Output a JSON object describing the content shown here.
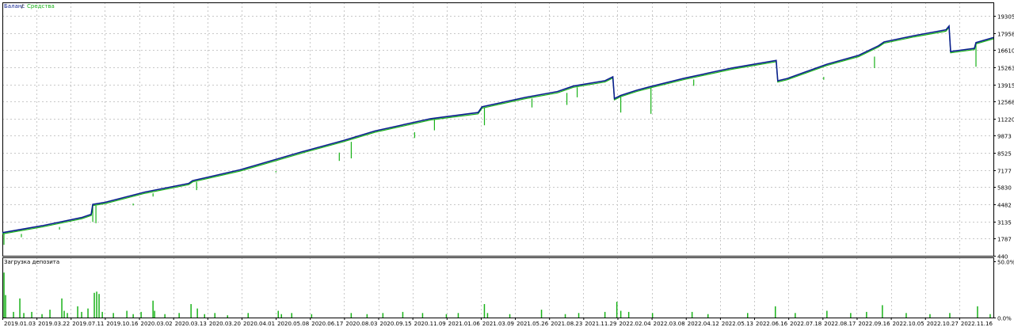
{
  "colors": {
    "balance": "#0b1f8f",
    "equity": "#19b219",
    "load": "#19b219",
    "grid": "#c8c8c8",
    "frame": "#000000",
    "text": "#000000"
  },
  "chart_data": [
    {
      "type": "line",
      "legend": [
        {
          "label": "Баланс",
          "color": "#0b1f8f"
        },
        {
          "label": "Средства",
          "color": "#19b219"
        }
      ],
      "legend_separator": " / ",
      "y_ticks": [
        "19305",
        "17958",
        "16610",
        "15263",
        "13915",
        "12568",
        "11220",
        "9873",
        "8525",
        "7177",
        "5830",
        "4482",
        "3135",
        "1787",
        "440"
      ],
      "ylim": [
        440,
        19305
      ],
      "x_ticks": [
        "2019.01.03",
        "2019.03.22",
        "2019.07.11",
        "2019.10.16",
        "2020.03.02",
        "2020.03.13",
        "2020.03.20",
        "2020.04.01",
        "2020.05.08",
        "2020.06.17",
        "2020.08.03",
        "2020.09.15",
        "2020.11.09",
        "2021.01.06",
        "2021.03.09",
        "2021.05.26",
        "2021.08.23",
        "2021.11.29",
        "2022.02.04",
        "2022.03.08",
        "2022.04.12",
        "2022.05.13",
        "2022.06.16",
        "2022.07.18",
        "2022.08.17",
        "2022.09.16",
        "2022.10.05",
        "2022.10.27",
        "2022.11.16"
      ],
      "series": [
        {
          "name": "Баланс",
          "x": [
            0,
            50,
            100,
            112,
            114,
            130,
            180,
            235,
            240,
            300,
            380,
            430,
            470,
            540,
            600,
            605,
            660,
            700,
            720,
            760,
            770,
            772,
            780,
            800,
            818,
            860,
            920,
            976,
            978,
            990,
            1040,
            1080,
            1105,
            1112,
            1150,
            1190,
            1194,
            1196,
            1226,
            1228,
            1250
          ],
          "y": [
            2260,
            2800,
            3450,
            3700,
            4482,
            4650,
            5450,
            6130,
            6350,
            7200,
            8650,
            9500,
            10250,
            11220,
            11700,
            12150,
            12900,
            13350,
            13780,
            14200,
            14510,
            12800,
            13050,
            13450,
            13750,
            14400,
            15200,
            15800,
            14200,
            14380,
            15500,
            16200,
            16950,
            17250,
            17750,
            18200,
            18500,
            16500,
            16750,
            17200,
            17600
          ]
        },
        {
          "name": "Средства",
          "x": [
            0,
            50,
            100,
            112,
            114,
            130,
            180,
            235,
            240,
            300,
            380,
            430,
            470,
            540,
            600,
            605,
            660,
            700,
            720,
            760,
            770,
            772,
            780,
            800,
            818,
            860,
            920,
            976,
            978,
            990,
            1040,
            1080,
            1105,
            1112,
            1150,
            1190,
            1194,
            1196,
            1226,
            1228,
            1250
          ],
          "y": [
            2160,
            2700,
            3350,
            3600,
            4380,
            4550,
            5350,
            6030,
            6250,
            7100,
            8550,
            9400,
            10150,
            11120,
            11600,
            12050,
            12800,
            13250,
            13680,
            14100,
            14410,
            12700,
            12950,
            13350,
            13650,
            14300,
            15100,
            15700,
            14100,
            14280,
            15400,
            16100,
            16850,
            17150,
            17650,
            18100,
            18400,
            16400,
            16650,
            17100,
            17500
          ],
          "spikes": [
            {
              "x": 2,
              "y": 1300
            },
            {
              "x": 24,
              "y": 1900
            },
            {
              "x": 72,
              "y": 2500
            },
            {
              "x": 114,
              "y": 3100
            },
            {
              "x": 118,
              "y": 3000
            },
            {
              "x": 165,
              "y": 4400
            },
            {
              "x": 190,
              "y": 5100
            },
            {
              "x": 245,
              "y": 5600
            },
            {
              "x": 345,
              "y": 7000
            },
            {
              "x": 425,
              "y": 7900
            },
            {
              "x": 440,
              "y": 8100
            },
            {
              "x": 520,
              "y": 9700
            },
            {
              "x": 545,
              "y": 10300
            },
            {
              "x": 608,
              "y": 10700
            },
            {
              "x": 668,
              "y": 12100
            },
            {
              "x": 712,
              "y": 12300
            },
            {
              "x": 725,
              "y": 12900
            },
            {
              "x": 780,
              "y": 11700
            },
            {
              "x": 818,
              "y": 11600
            },
            {
              "x": 872,
              "y": 13800
            },
            {
              "x": 1036,
              "y": 14500
            },
            {
              "x": 1100,
              "y": 15200
            },
            {
              "x": 1228,
              "y": 15300
            }
          ]
        }
      ]
    },
    {
      "type": "bar",
      "title": "Загрузка депозита",
      "y_ticks": [
        "50.0%",
        "0.0%"
      ],
      "ylim": [
        0,
        50
      ],
      "unit": "%",
      "x": [
        2,
        4,
        14,
        22,
        27,
        37,
        50,
        60,
        75,
        78,
        82,
        95,
        100,
        108,
        116,
        119,
        122,
        126,
        140,
        157,
        165,
        175,
        190,
        192,
        205,
        223,
        238,
        246,
        255,
        268,
        284,
        310,
        348,
        352,
        365,
        390,
        440,
        460,
        480,
        505,
        530,
        560,
        575,
        608,
        612,
        640,
        680,
        710,
        727,
        760,
        775,
        780,
        790,
        820,
        870,
        890,
        940,
        975,
        1000,
        1040,
        1070,
        1090,
        1110,
        1140,
        1170,
        1195,
        1230,
        1246
      ],
      "values": [
        40,
        20,
        5,
        17,
        4,
        5,
        3,
        7,
        17,
        6,
        4,
        10,
        5,
        8,
        22,
        23,
        21,
        5,
        4,
        6,
        3,
        5,
        15,
        6,
        3,
        4,
        12,
        8,
        3,
        4,
        2,
        4,
        6,
        3,
        4,
        3,
        4,
        3,
        4,
        5,
        4,
        3,
        4,
        12,
        4,
        3,
        7,
        3,
        4,
        5,
        14,
        6,
        5,
        4,
        5,
        3,
        4,
        10,
        4,
        6,
        4,
        5,
        11,
        4,
        3,
        4,
        10,
        3
      ]
    }
  ]
}
